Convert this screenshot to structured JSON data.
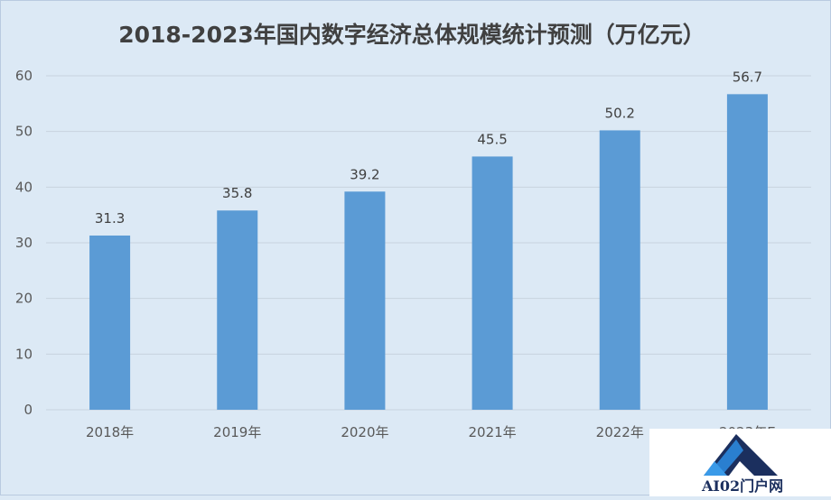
{
  "chart_data": {
    "type": "bar",
    "title": "2018-2023年国内数字经济总体规模统计预测（万亿元）",
    "categories": [
      "2018年",
      "2019年",
      "2020年",
      "2021年",
      "2022年",
      "2023年E"
    ],
    "values": [
      31.3,
      35.8,
      39.2,
      45.5,
      50.2,
      56.7
    ],
    "value_labels": [
      "31.3",
      "35.8",
      "39.2",
      "45.5",
      "50.2",
      "56.7"
    ],
    "yticks": [
      "0",
      "10",
      "20",
      "30",
      "40",
      "50",
      "60"
    ],
    "ylim": [
      0,
      60
    ],
    "grid": true,
    "legend": "none",
    "bar_color": "#5b9bd5",
    "xlabel": "",
    "ylabel": ""
  },
  "watermark": {
    "text": "AI02门户网",
    "icon": "triangle-a-logo-icon"
  }
}
